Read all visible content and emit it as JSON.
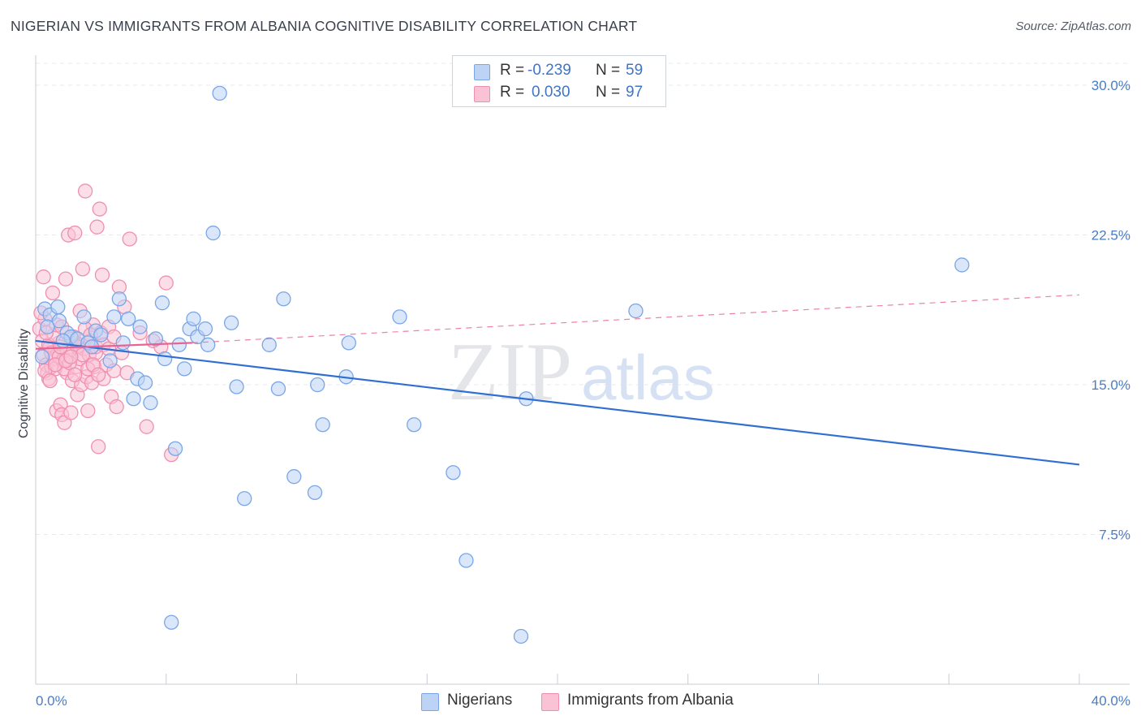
{
  "title": "NIGERIAN VS IMMIGRANTS FROM ALBANIA COGNITIVE DISABILITY CORRELATION CHART",
  "source": "Source: ZipAtlas.com",
  "watermark": {
    "zip": "ZIP",
    "atlas": "atlas"
  },
  "legend": {
    "r_label": "R =",
    "n_label": "N =",
    "series": [
      {
        "name": "Nigerians",
        "r": "-0.239",
        "n": "59",
        "color": "#7aa6e6",
        "fill": "#bcd3f5"
      },
      {
        "name": "Immigrants from Albania",
        "r": "0.030",
        "n": "97",
        "color": "#f08fb0",
        "fill": "#f9c3d5"
      }
    ]
  },
  "colors": {
    "blue_line": "#2e6fd1",
    "pink_line": "#e8638f",
    "grid": "#e6e8ec",
    "axis": "#c8ccd3",
    "tick_text": "#4a7cc7"
  },
  "chart_data": {
    "type": "scatter",
    "title": "NIGERIAN VS IMMIGRANTS FROM ALBANIA COGNITIVE DISABILITY CORRELATION CHART",
    "xlabel": "",
    "ylabel": "Cognitive Disability",
    "xlim": [
      0,
      40
    ],
    "ylim": [
      0,
      31.1
    ],
    "x_tick_labels": [
      "0.0%",
      "40.0%"
    ],
    "y_ticks": [
      7.5,
      15.0,
      22.5,
      30.0
    ],
    "y_tick_labels": [
      "7.5%",
      "15.0%",
      "22.5%",
      "30.0%"
    ],
    "grid": true,
    "series": [
      {
        "name": "Nigerians",
        "trend": {
          "x": [
            0,
            40
          ],
          "y": [
            17.2,
            11.0
          ],
          "style": "solid"
        },
        "points": [
          [
            0.35,
            18.8
          ],
          [
            0.55,
            18.5
          ],
          [
            0.85,
            18.9
          ],
          [
            0.9,
            18.2
          ],
          [
            1.2,
            17.6
          ],
          [
            1.35,
            17.4
          ],
          [
            1.6,
            17.3
          ],
          [
            1.85,
            18.4
          ],
          [
            2.0,
            17.1
          ],
          [
            2.3,
            17.7
          ],
          [
            2.5,
            17.5
          ],
          [
            2.85,
            16.2
          ],
          [
            3.0,
            18.4
          ],
          [
            3.2,
            19.3
          ],
          [
            3.35,
            17.1
          ],
          [
            3.55,
            18.3
          ],
          [
            3.75,
            14.3
          ],
          [
            3.9,
            15.3
          ],
          [
            4.0,
            17.9
          ],
          [
            4.2,
            15.1
          ],
          [
            4.4,
            14.1
          ],
          [
            4.6,
            17.3
          ],
          [
            4.85,
            19.1
          ],
          [
            4.95,
            16.3
          ],
          [
            5.2,
            3.1
          ],
          [
            5.35,
            11.8
          ],
          [
            5.5,
            17.0
          ],
          [
            5.7,
            15.8
          ],
          [
            5.9,
            17.8
          ],
          [
            6.05,
            18.3
          ],
          [
            6.2,
            17.4
          ],
          [
            6.5,
            17.8
          ],
          [
            6.6,
            17.0
          ],
          [
            6.8,
            22.6
          ],
          [
            7.05,
            29.6
          ],
          [
            7.5,
            18.1
          ],
          [
            7.7,
            14.9
          ],
          [
            8.0,
            9.3
          ],
          [
            8.95,
            17.0
          ],
          [
            9.3,
            14.8
          ],
          [
            9.5,
            19.3
          ],
          [
            9.9,
            10.4
          ],
          [
            10.7,
            9.6
          ],
          [
            10.8,
            15.0
          ],
          [
            11.0,
            13.0
          ],
          [
            11.9,
            15.4
          ],
          [
            12.0,
            17.1
          ],
          [
            13.95,
            18.4
          ],
          [
            14.5,
            13.0
          ],
          [
            16.0,
            10.6
          ],
          [
            16.5,
            6.2
          ],
          [
            18.6,
            2.4
          ],
          [
            18.8,
            14.3
          ],
          [
            23.0,
            18.7
          ],
          [
            35.5,
            21.0
          ],
          [
            0.45,
            17.9
          ],
          [
            1.05,
            17.2
          ],
          [
            2.15,
            16.9
          ],
          [
            0.25,
            16.4
          ]
        ]
      },
      {
        "name": "Immigrants from Albania",
        "trend": {
          "x": [
            0,
            6
          ],
          "y": [
            16.8,
            17.1
          ],
          "style": "solid",
          "extension": {
            "x": [
              6,
              40
            ],
            "y": [
              17.1,
              19.5
            ],
            "style": "dashed"
          }
        },
        "points": [
          [
            0.15,
            17.8
          ],
          [
            0.25,
            17.2
          ],
          [
            0.3,
            16.5
          ],
          [
            0.35,
            18.3
          ],
          [
            0.4,
            16.0
          ],
          [
            0.45,
            15.6
          ],
          [
            0.5,
            15.3
          ],
          [
            0.55,
            16.9
          ],
          [
            0.6,
            15.9
          ],
          [
            0.65,
            19.6
          ],
          [
            0.7,
            16.3
          ],
          [
            0.75,
            15.8
          ],
          [
            0.8,
            13.7
          ],
          [
            0.85,
            16.6
          ],
          [
            0.9,
            17.1
          ],
          [
            0.95,
            14.0
          ],
          [
            1.0,
            13.5
          ],
          [
            1.05,
            16.2
          ],
          [
            1.1,
            13.1
          ],
          [
            1.15,
            20.3
          ],
          [
            1.2,
            15.6
          ],
          [
            1.25,
            22.5
          ],
          [
            1.3,
            16.9
          ],
          [
            1.35,
            13.6
          ],
          [
            1.4,
            15.2
          ],
          [
            1.45,
            17.4
          ],
          [
            1.5,
            22.6
          ],
          [
            1.55,
            15.9
          ],
          [
            1.6,
            14.5
          ],
          [
            1.65,
            17.0
          ],
          [
            1.7,
            16.3
          ],
          [
            1.75,
            15.0
          ],
          [
            1.8,
            20.8
          ],
          [
            1.85,
            16.8
          ],
          [
            1.9,
            24.7
          ],
          [
            1.95,
            15.4
          ],
          [
            2.0,
            13.7
          ],
          [
            2.05,
            16.5
          ],
          [
            2.1,
            17.2
          ],
          [
            2.15,
            15.1
          ],
          [
            2.2,
            18.0
          ],
          [
            2.25,
            15.9
          ],
          [
            2.3,
            16.6
          ],
          [
            2.35,
            22.9
          ],
          [
            2.4,
            11.9
          ],
          [
            2.45,
            23.8
          ],
          [
            2.5,
            17.6
          ],
          [
            2.55,
            20.5
          ],
          [
            2.6,
            15.3
          ],
          [
            2.7,
            16.0
          ],
          [
            2.8,
            17.9
          ],
          [
            2.9,
            14.4
          ],
          [
            3.0,
            15.7
          ],
          [
            3.1,
            13.9
          ],
          [
            3.2,
            19.9
          ],
          [
            3.3,
            16.6
          ],
          [
            3.4,
            18.9
          ],
          [
            3.5,
            15.6
          ],
          [
            3.6,
            22.3
          ],
          [
            4.0,
            17.6
          ],
          [
            4.25,
            12.9
          ],
          [
            4.5,
            17.2
          ],
          [
            4.8,
            16.9
          ],
          [
            5.0,
            20.1
          ],
          [
            5.2,
            11.5
          ],
          [
            0.2,
            18.6
          ],
          [
            0.3,
            20.4
          ],
          [
            0.5,
            17.0
          ],
          [
            0.6,
            16.6
          ],
          [
            0.7,
            17.5
          ],
          [
            0.8,
            18.0
          ],
          [
            0.9,
            16.4
          ],
          [
            1.0,
            17.9
          ],
          [
            1.1,
            15.8
          ],
          [
            1.2,
            16.7
          ],
          [
            1.3,
            16.1
          ],
          [
            1.4,
            17.3
          ],
          [
            1.5,
            15.5
          ],
          [
            1.6,
            16.9
          ],
          [
            1.7,
            18.7
          ],
          [
            1.8,
            16.5
          ],
          [
            1.9,
            17.8
          ],
          [
            2.0,
            15.8
          ],
          [
            2.1,
            17.5
          ],
          [
            2.2,
            16.0
          ],
          [
            2.3,
            16.9
          ],
          [
            2.4,
            15.5
          ],
          [
            2.6,
            17.0
          ],
          [
            2.8,
            16.8
          ],
          [
            3.0,
            17.4
          ],
          [
            0.35,
            15.7
          ],
          [
            0.55,
            15.2
          ],
          [
            0.75,
            16.0
          ],
          [
            0.95,
            16.9
          ],
          [
            1.15,
            16.2
          ],
          [
            1.35,
            16.4
          ],
          [
            0.4,
            17.6
          ]
        ]
      }
    ]
  }
}
